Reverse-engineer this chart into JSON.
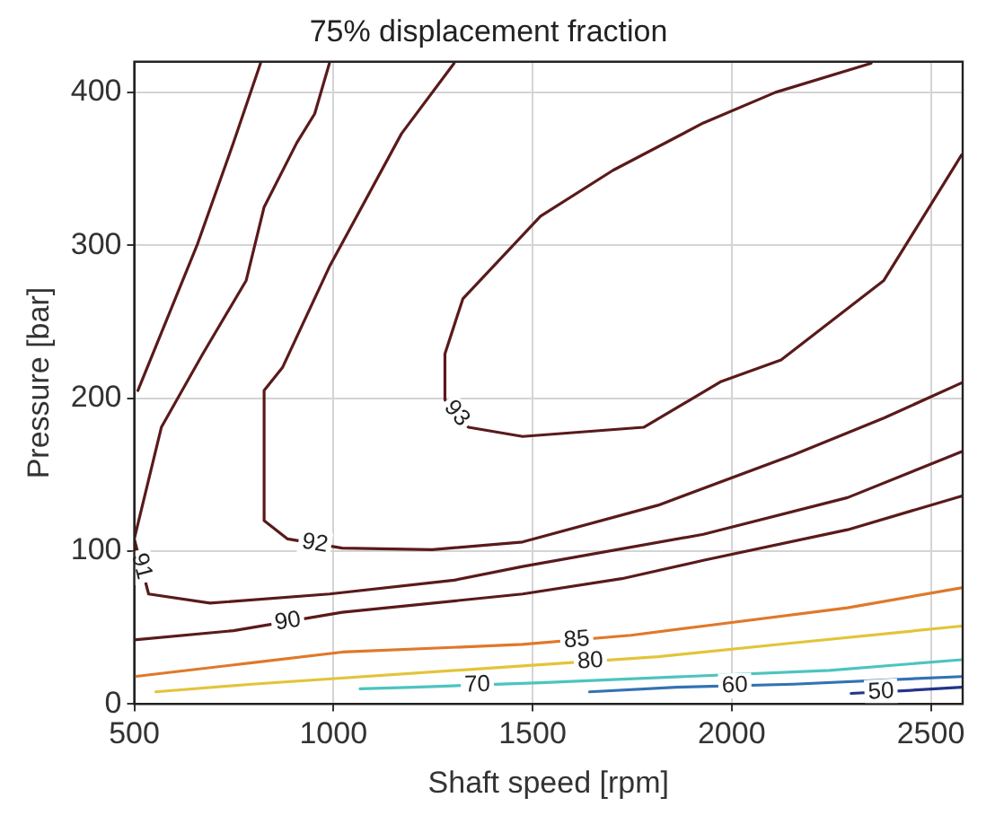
{
  "chart_data": {
    "type": "line",
    "title": "75% displacement fraction",
    "xlabel": "Shaft speed [rpm]",
    "ylabel": "Pressure [bar]",
    "xlim": [
      500,
      2580
    ],
    "ylim": [
      0,
      420
    ],
    "xticks": [
      500,
      1000,
      1500,
      2000,
      2500
    ],
    "yticks": [
      0,
      100,
      200,
      300,
      400
    ],
    "grid": true,
    "legend": false,
    "marker": "none",
    "line_style": "solid",
    "series": [
      {
        "name": "93",
        "color": "#5a1a1a",
        "x": [
          2350,
          2110,
          1929,
          1702,
          1520,
          1325,
          1280,
          1280,
          1339,
          1475,
          1779,
          1974,
          2124,
          2382,
          2563,
          2577
        ],
        "values": [
          419,
          400,
          380,
          349,
          319,
          265,
          229,
          199,
          181,
          175,
          181,
          211,
          225,
          277,
          353,
          359
        ]
      },
      {
        "name": "92",
        "color": "#5a1a1a",
        "x": [
          1303,
          1171,
          990,
          872,
          826,
          826,
          885,
          1022,
          1248,
          1475,
          1815,
          2155,
          2382,
          2577
        ],
        "values": [
          419,
          373,
          286,
          220,
          205,
          120,
          108,
          102,
          101,
          106,
          130,
          163,
          187,
          210
        ]
      },
      {
        "name": "91",
        "color": "#5a1a1a",
        "x": [
          990,
          953,
          908,
          826,
          781,
          672,
          568,
          500,
          536,
          690,
          990,
          1303,
          1475,
          1929,
          2291,
          2577
        ],
        "values": [
          419,
          386,
          367,
          325,
          277,
          229,
          181,
          108,
          72,
          66,
          72,
          81,
          90,
          111,
          135,
          165
        ]
      },
      {
        "name": "90",
        "color": "#5a1a1a",
        "x": [
          817,
          749,
          659,
          509,
          505,
          500,
          749,
          1022,
          1475,
          1724,
          1929,
          2291,
          2577
        ],
        "values": [
          419,
          367,
          301,
          205,
          null,
          42,
          48,
          60,
          72,
          82,
          94,
          114,
          136
        ]
      },
      {
        "name": "85",
        "color": "#e0782a",
        "x": [
          500,
          795,
          1022,
          1475,
          1747,
          1929,
          2291,
          2577
        ],
        "values": [
          18,
          27,
          34,
          39,
          45,
          51,
          63,
          76
        ]
      },
      {
        "name": "80",
        "color": "#e3c43a",
        "x": [
          554,
          795,
          1475,
          1815,
          2155,
          2577
        ],
        "values": [
          8,
          13,
          25,
          31,
          40,
          51
        ]
      },
      {
        "name": "70",
        "color": "#4cc4c0",
        "x": [
          1067,
          1203,
          1520,
          2246,
          2577
        ],
        "values": [
          10,
          11,
          14,
          22,
          29
        ]
      },
      {
        "name": "60",
        "color": "#3272b4",
        "x": [
          1643,
          1861,
          2155,
          2577
        ],
        "values": [
          8,
          11,
          13,
          18
        ]
      },
      {
        "name": "50",
        "color": "#24348a",
        "x": [
          2300,
          2450,
          2577
        ],
        "values": [
          7,
          9,
          11
        ]
      }
    ]
  }
}
